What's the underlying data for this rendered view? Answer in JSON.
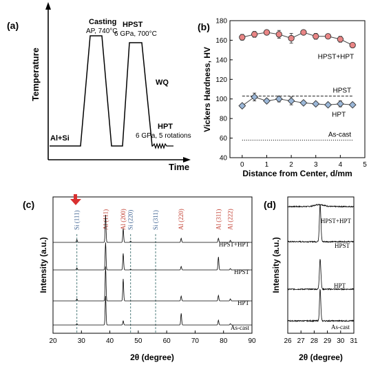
{
  "panels": {
    "a": {
      "panel_label": "(a)",
      "ylabel": "Temperature",
      "xlabel": "Time",
      "steps": [
        {
          "name": "Casting",
          "detail": "AP, 740°C"
        },
        {
          "name": "HPST",
          "detail": "6 GPa, 700°C"
        },
        {
          "name": "WQ",
          "detail": ""
        },
        {
          "name": "HPT",
          "detail": "6 GPa, 5 rotations"
        }
      ],
      "start_label": "Al+Si"
    },
    "b": {
      "panel_label": "(b)"
    },
    "c": {
      "panel_label": "(c)"
    },
    "d": {
      "panel_label": "(d)"
    }
  },
  "chart_data": [
    {
      "panel": "b",
      "type": "line",
      "xlabel": "Distance from Center, d/mm",
      "ylabel": "Vickers Hardness, HV",
      "xlim": [
        -0.5,
        5
      ],
      "ylim": [
        40,
        180
      ],
      "xticks": [
        0,
        1,
        2,
        3,
        4,
        5
      ],
      "yticks": [
        40,
        60,
        80,
        100,
        120,
        140,
        160,
        180
      ],
      "x": [
        0,
        0.5,
        1,
        1.5,
        2,
        2.5,
        3,
        3.5,
        4,
        4.5
      ],
      "series": [
        {
          "name": "HPST+HPT",
          "marker": "circle",
          "color": "#e98585",
          "values": [
            163,
            166,
            168,
            166,
            162,
            168,
            164,
            164,
            161,
            155
          ],
          "errors": [
            3,
            3,
            2,
            4,
            5,
            2,
            3,
            2,
            3,
            2
          ]
        },
        {
          "name": "HPT",
          "marker": "diamond",
          "color": "#9bb7d8",
          "values": [
            93,
            102,
            98,
            100,
            98,
            96,
            95,
            94,
            95,
            94
          ],
          "errors": [
            2,
            4,
            2,
            3,
            4,
            2,
            2,
            2,
            3,
            2
          ]
        }
      ],
      "reference_lines": [
        {
          "name": "HPST",
          "value": 103,
          "style": "dashed"
        },
        {
          "name": "As-cast",
          "value": 58,
          "style": "dotted"
        }
      ]
    },
    {
      "panel": "c",
      "type": "line",
      "xlabel": "2θ (degree)",
      "ylabel": "Intensity (a.u.)",
      "xlim": [
        20,
        90
      ],
      "xticks": [
        20,
        30,
        40,
        50,
        60,
        70,
        80,
        90
      ],
      "series": [
        {
          "name": "HPST+HPT",
          "peaks": [
            {
              "x": 28.4,
              "h": 4
            },
            {
              "x": 38.5,
              "h": 40
            },
            {
              "x": 44.7,
              "h": 20
            },
            {
              "x": 47.3,
              "h": 2
            },
            {
              "x": 65.1,
              "h": 6
            },
            {
              "x": 78.2,
              "h": 6
            },
            {
              "x": 82.4,
              "h": 3
            }
          ]
        },
        {
          "name": "HPST",
          "peaks": [
            {
              "x": 28.4,
              "h": 3
            },
            {
              "x": 38.5,
              "h": 40
            },
            {
              "x": 44.7,
              "h": 24
            },
            {
              "x": 47.3,
              "h": 1
            },
            {
              "x": 65.1,
              "h": 5
            },
            {
              "x": 78.2,
              "h": 19
            },
            {
              "x": 82.4,
              "h": 2
            }
          ]
        },
        {
          "name": "HPT",
          "peaks": [
            {
              "x": 28.4,
              "h": 3
            },
            {
              "x": 38.5,
              "h": 50
            },
            {
              "x": 44.7,
              "h": 32
            },
            {
              "x": 65.1,
              "h": 7
            },
            {
              "x": 78.2,
              "h": 8
            },
            {
              "x": 82.4,
              "h": 3
            }
          ]
        },
        {
          "name": "As-cast",
          "peaks": [
            {
              "x": 28.4,
              "h": 2
            },
            {
              "x": 38.5,
              "h": 42
            },
            {
              "x": 44.7,
              "h": 6
            },
            {
              "x": 65.1,
              "h": 17
            },
            {
              "x": 78.2,
              "h": 7
            },
            {
              "x": 82.4,
              "h": 2
            }
          ]
        }
      ],
      "reference_peaks": [
        {
          "label": "Si (111)",
          "x": 28.4,
          "phase": "Si",
          "color": "#3a5f8f"
        },
        {
          "label": "Al (111)",
          "x": 38.5,
          "phase": "Al",
          "color": "#c0392b"
        },
        {
          "label": "Al (200)",
          "x": 44.7,
          "phase": "Al",
          "color": "#c0392b"
        },
        {
          "label": "Si (220)",
          "x": 47.3,
          "phase": "Si",
          "color": "#3a5f8f"
        },
        {
          "label": "Si (311)",
          "x": 56.1,
          "phase": "Si",
          "color": "#3a5f8f"
        },
        {
          "label": "Al (220)",
          "x": 65.1,
          "phase": "Al",
          "color": "#c0392b"
        },
        {
          "label": "Al (311)",
          "x": 78.2,
          "phase": "Al",
          "color": "#c0392b"
        },
        {
          "label": "Al (222)",
          "x": 82.4,
          "phase": "Al",
          "color": "#c0392b"
        }
      ]
    },
    {
      "panel": "d",
      "type": "line",
      "xlabel": "2θ (degree)",
      "ylabel": "Intensity (a.u.)",
      "xlim": [
        26,
        31
      ],
      "xticks": [
        26,
        27,
        28,
        29,
        30,
        31
      ],
      "series": [
        {
          "name": "HPST+HPT",
          "peak_x": 28.4,
          "peak_h": 3,
          "width": 0.5
        },
        {
          "name": "HPST",
          "peak_x": 28.45,
          "peak_h": 54,
          "width": 0.08
        },
        {
          "name": "HPT",
          "peak_x": 28.45,
          "peak_h": 44,
          "width": 0.08
        },
        {
          "name": "As-cast",
          "peak_x": 28.45,
          "peak_h": 46,
          "width": 0.07
        }
      ]
    }
  ]
}
